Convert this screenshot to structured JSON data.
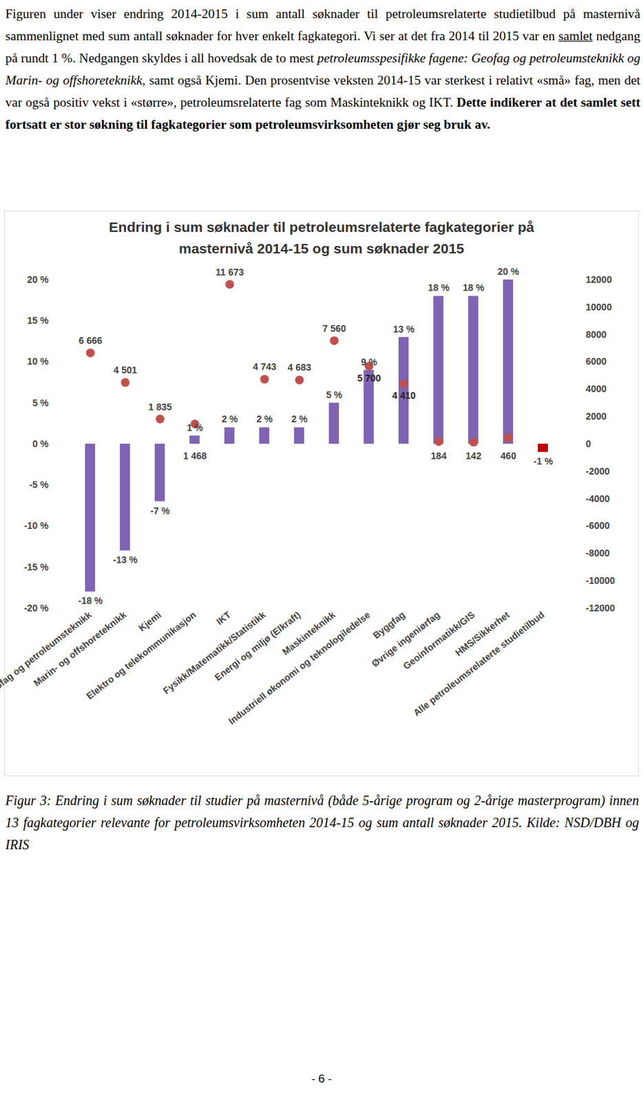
{
  "paragraph": [
    {
      "text": "Figuren under viser endring 2014-2015 i sum antall søknader til petroleumsrelaterte studietilbud på masternivå sammenlignet med sum antall søknader for hver enkelt fagkategori. Vi ser at det fra 2014 til 2015 var en ",
      "style": "normal"
    },
    {
      "text": "samlet",
      "style": "underline"
    },
    {
      "text": " nedgang på rundt 1 %. Nedgangen skyldes i all hovedsak de to mest ",
      "style": "normal"
    },
    {
      "text": "petroleumsspesifikke fagene: Geofag og petroleumsteknikk og Marin- og offshoreteknikk",
      "style": "italic"
    },
    {
      "text": ", samt også Kjemi. Den prosentvise veksten 2014-15 var sterkest i relativt «små» fag, men det var også positiv vekst i «større», petroleumsrelaterte fag som Maskinteknikk og IKT. ",
      "style": "normal"
    },
    {
      "text": "Dette indikerer at det samlet sett fortsatt er stor søkning til fagkategorier som petroleumsvirksomheten gjør seg bruk av.",
      "style": "bold"
    }
  ],
  "chart_data": {
    "type": "bar",
    "title": "Endring i sum søknader til petroleumsrelaterte fagkategorier på masternivå 2014-15 og sum søknader 2015",
    "categories": [
      "Geofag og petroleumsteknikk",
      "Marin- og offshoreteknikk",
      "Kjemi",
      "Elektro og telekommunikasjon",
      "IKT",
      "Fysikk/Matematikk/Statistikk",
      "Energi og miljø (Elkraft)",
      "Maskinteknikk",
      "Industriell økonomi og teknologiledelse",
      "Byggfag",
      "Øvrige ingeniørfag",
      "Geoinformatikk/GIS",
      "HMS/Sikkerhet",
      "Alle petroleumsrelaterte studietilbud"
    ],
    "series": [
      {
        "type": "bar",
        "colors": [
          "#7f64b4",
          "#7f64b4",
          "#7f64b4",
          "#7f64b4",
          "#7f64b4",
          "#7f64b4",
          "#7f64b4",
          "#7f64b4",
          "#7f64b4",
          "#7f64b4",
          "#7f64b4",
          "#7f64b4",
          "#7f64b4",
          "#c00000"
        ],
        "values": [
          -18,
          -13,
          -7,
          1,
          2,
          2,
          2,
          5,
          9,
          13,
          18,
          18,
          20,
          -1
        ],
        "value_labels": [
          "-18 %",
          "-13 %",
          "-7 %",
          "1 %",
          "2 %",
          "2 %",
          "2 %",
          "5 %",
          "9 %",
          "13 %",
          "18 %",
          "18 %",
          "20 %",
          "-1 %"
        ]
      },
      {
        "type": "scatter",
        "axis": "y2",
        "color": "#c0504d",
        "marker": "circle",
        "values": [
          6666,
          4501,
          1835,
          1468,
          11673,
          4743,
          4683,
          7560,
          5700,
          4410,
          184,
          142,
          460,
          null
        ],
        "value_labels": [
          "6 666",
          "4 501",
          "1 835",
          "1 468",
          "11 673",
          "4 743",
          "4 683",
          "7 560",
          "5 700",
          "4 410",
          "184",
          "142",
          "460",
          null
        ]
      }
    ],
    "ylim": [
      -20,
      20
    ],
    "yticks": [
      {
        "value": -20,
        "label": "-20 %"
      },
      {
        "value": -15,
        "label": "-15 %"
      },
      {
        "value": -10,
        "label": "-10 %"
      },
      {
        "value": -5,
        "label": "-5 %"
      },
      {
        "value": 0,
        "label": "0 %"
      },
      {
        "value": 5,
        "label": "5 %"
      },
      {
        "value": 10,
        "label": "10 %"
      },
      {
        "value": 15,
        "label": "15 %"
      },
      {
        "value": 20,
        "label": "20 %"
      }
    ],
    "y2lim": [
      -12000,
      12000
    ],
    "y2ticks": [
      -12000,
      -10000,
      -8000,
      -6000,
      -4000,
      -2000,
      0,
      2000,
      4000,
      6000,
      8000,
      10000,
      12000
    ],
    "grid": false,
    "data_labels": true
  },
  "caption": "Figur 3: Endring i sum søknader til studier på masternivå (både 5-årige program og 2-årige masterprogram) innen 13 fagkategorier relevante for petroleumsvirksomheten 2014-15 og sum antall søknader 2015. Kilde: NSD/DBH og IRIS",
  "page_number": "- 6 -"
}
